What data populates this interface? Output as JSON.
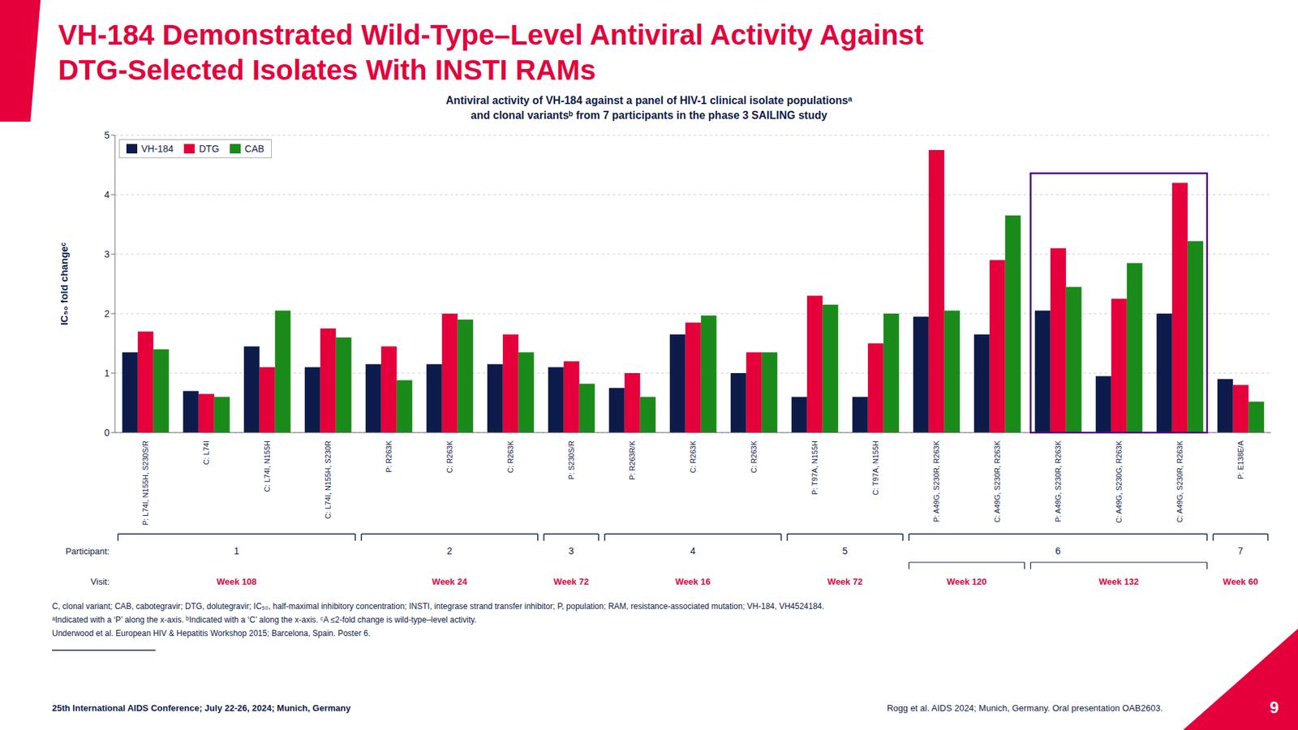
{
  "chart_data": {
    "type": "bar",
    "title": [
      "VH-184 Demonstrated Wild-Type–Level Antiviral Activity Against",
      "DTG-Selected Isolates With INSTI RAMs"
    ],
    "subtitle": [
      "Antiviral activity of VH-184 against a panel of HIV-1 clinical isolate populationsᵃ",
      "and clonal variantsᵇ from 7 participants in the phase 3 SAILING study"
    ],
    "ylabel": "IC₅₀ fold changeᶜ",
    "categories": [
      "P: L74I, N155H, S230S/R",
      "C: L74I",
      "C: L74I, N155H",
      "C: L74I, N155H, S230R",
      "P: R263K",
      "C: R263K",
      "C: R263K",
      "P: S230S/R",
      "P: R263R/K",
      "C: R263K",
      "C: R263K",
      "P: T97A, N155H",
      "C: T97A, N155H",
      "P: A49G, S230R, R263K",
      "C: A49G, S230R, R263K",
      "P: A49G, S230R, R263K",
      "C: A49G, S230G, R263K",
      "C: A49G, S230R, R263K",
      "P: E138E/A"
    ],
    "series": [
      {
        "name": "VH-184",
        "color": "#0d1b4b",
        "values": [
          1.35,
          0.7,
          1.45,
          1.1,
          1.15,
          1.15,
          1.15,
          1.1,
          0.75,
          1.65,
          1.0,
          0.6,
          0.6,
          1.95,
          1.65,
          2.05,
          0.95,
          2.0,
          0.9
        ]
      },
      {
        "name": "DTG",
        "color": "#e5003b",
        "values": [
          1.7,
          0.65,
          1.1,
          1.75,
          1.45,
          2.0,
          1.65,
          1.2,
          1.0,
          1.85,
          1.35,
          2.3,
          1.5,
          4.75,
          2.9,
          3.1,
          2.25,
          4.2,
          0.8
        ]
      },
      {
        "name": "CAB",
        "color": "#1a8a1a",
        "values": [
          1.4,
          0.6,
          2.05,
          1.6,
          0.88,
          1.9,
          1.35,
          0.82,
          0.6,
          1.97,
          1.35,
          2.15,
          2.0,
          2.05,
          3.65,
          2.45,
          2.85,
          3.22,
          0.52
        ]
      }
    ],
    "ylim": [
      0,
      5
    ],
    "yticks": [
      0,
      1,
      2,
      3,
      4,
      5
    ],
    "grid": true,
    "legend": "upper left",
    "highlight": {
      "start": 15,
      "end": 17,
      "color": "#4a0080"
    },
    "participant_label": "Participant:",
    "visit_label": "Visit:",
    "participants": [
      {
        "label": "1",
        "start": 0,
        "end": 3,
        "visits": [
          {
            "visit": "Week 108",
            "start": 0,
            "end": 3
          }
        ]
      },
      {
        "label": "2",
        "start": 4,
        "end": 6,
        "visits": [
          {
            "visit": "Week 24",
            "start": 4,
            "end": 6
          }
        ]
      },
      {
        "label": "3",
        "start": 7,
        "end": 7,
        "visits": [
          {
            "visit": "Week 72",
            "start": 7,
            "end": 7
          }
        ]
      },
      {
        "label": "4",
        "start": 8,
        "end": 10,
        "visits": [
          {
            "visit": "Week 16",
            "start": 8,
            "end": 10
          }
        ]
      },
      {
        "label": "5",
        "start": 11,
        "end": 12,
        "visits": [
          {
            "visit": "Week 72",
            "start": 11,
            "end": 12
          }
        ]
      },
      {
        "label": "6",
        "start": 13,
        "end": 17,
        "visits": [
          {
            "visit": "Week 120",
            "start": 13,
            "end": 14
          },
          {
            "visit": "Week 132",
            "start": 15,
            "end": 17
          }
        ]
      },
      {
        "label": "7",
        "start": 18,
        "end": 18,
        "visits": [
          {
            "visit": "Week 60",
            "start": 18,
            "end": 18
          }
        ]
      }
    ],
    "footnotes": [
      "C, clonal variant; CAB, cabotegravir; DTG, dolutegravir; IC₅₀, half-maximal inhibitory concentration; INSTI, integrase strand transfer inhibitor; P, population; RAM, resistance-associated mutation; VH-184, VH4524184.",
      "ᵃIndicated with a ‘P’ along the x-axis. ᵇIndicated with a ‘C’ along the x-axis. ᶜA ≤2-fold change is wild-type–level activity.",
      "Underwood et al. European HIV & Hepatitis Workshop 2015; Barcelona, Spain. Poster 6."
    ],
    "footer_left": "25th International AIDS Conference; July 22-26, 2024; Munich, Germany",
    "footer_right": "Rogg et al. AIDS 2024; Munich, Germany. Oral presentation OAB2603.",
    "page_number": "9",
    "title_color": "#e5003b",
    "text_color": "#0d1b4b",
    "accent_color": "#e5003b"
  }
}
